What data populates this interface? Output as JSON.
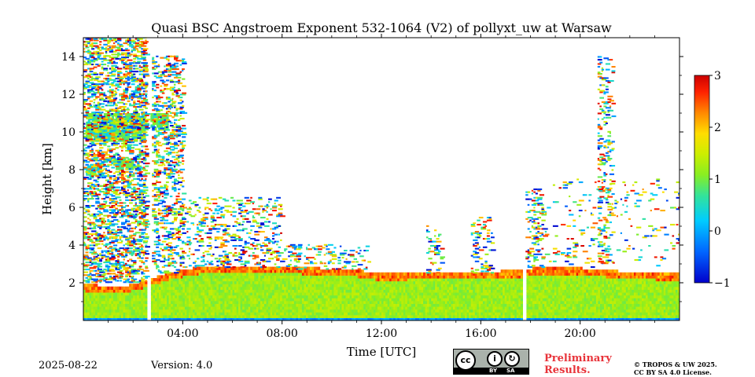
{
  "chart_data": {
    "type": "heatmap",
    "title": "Quasi BSC Angstroem Exponent 532-1064 (V2) of pollyxt_uw at Warsaw",
    "xlabel": "Time [UTC]",
    "ylabel": "Height [km]",
    "x_range_hours": [
      0,
      24
    ],
    "ylim": [
      0,
      15
    ],
    "x_ticks": [
      "04:00",
      "08:00",
      "12:00",
      "16:00",
      "20:00"
    ],
    "x_tick_hours": [
      4,
      8,
      12,
      16,
      20
    ],
    "y_ticks": [
      "2",
      "4",
      "6",
      "8",
      "10",
      "12",
      "14"
    ],
    "y_tick_values": [
      2,
      4,
      6,
      8,
      10,
      12,
      14
    ],
    "colorbar": {
      "min": -1,
      "max": 3,
      "ticks": [
        "−1",
        "0",
        "1",
        "2",
        "3"
      ],
      "tick_values": [
        -1,
        0,
        1,
        2,
        3
      ],
      "colormap": "jet"
    },
    "data_gaps_hours": [
      [
        2.55,
        2.7
      ],
      [
        17.65,
        17.8
      ]
    ],
    "boundary_layer_top_km": [
      [
        0,
        1.85
      ],
      [
        1.5,
        1.7
      ],
      [
        2.6,
        2.1
      ],
      [
        3.5,
        2.5
      ],
      [
        5,
        2.85
      ],
      [
        8,
        2.8
      ],
      [
        11,
        2.6
      ],
      [
        12,
        2.4
      ],
      [
        14,
        2.5
      ],
      [
        16,
        2.5
      ],
      [
        17.6,
        2.6
      ],
      [
        18,
        2.7
      ],
      [
        20,
        2.7
      ],
      [
        22,
        2.5
      ],
      [
        24,
        2.4
      ]
    ],
    "boundary_layer_value": 1.2,
    "elevated_layers": [
      {
        "t": [
          0.1,
          2.5
        ],
        "h": [
          9.5,
          11.0
        ],
        "value": 0.9
      },
      {
        "t": [
          2.7,
          3.4
        ],
        "h": [
          10.1,
          10.9
        ],
        "value": 0.9
      },
      {
        "t": [
          0.1,
          0.8
        ],
        "h": [
          7.7,
          8.3
        ],
        "value": 0.7
      },
      {
        "t": [
          1.3,
          2.0
        ],
        "h": [
          8.0,
          8.6
        ],
        "value": 0.9
      }
    ],
    "noise_regions": [
      {
        "t": [
          0.0,
          2.6
        ],
        "h": [
          2.0,
          15.0
        ],
        "density": 0.75
      },
      {
        "t": [
          2.6,
          4.0
        ],
        "h": [
          2.5,
          14.0
        ],
        "density": 0.55
      },
      {
        "t": [
          4.0,
          8.0
        ],
        "h": [
          2.8,
          6.5
        ],
        "density": 0.35
      },
      {
        "t": [
          8.0,
          11.5
        ],
        "h": [
          2.7,
          4.0
        ],
        "density": 0.3
      },
      {
        "t": [
          13.8,
          14.4
        ],
        "h": [
          2.5,
          5.0
        ],
        "density": 0.35
      },
      {
        "t": [
          15.6,
          16.4
        ],
        "h": [
          2.5,
          5.5
        ],
        "density": 0.35
      },
      {
        "t": [
          17.8,
          18.5
        ],
        "h": [
          2.8,
          7.0
        ],
        "density": 0.4
      },
      {
        "t": [
          20.7,
          21.3
        ],
        "h": [
          3.0,
          14.0
        ],
        "density": 0.35
      },
      {
        "t": [
          18.5,
          24.0
        ],
        "h": [
          2.8,
          7.5
        ],
        "density": 0.08
      }
    ]
  },
  "footer": {
    "date": "2025-08-22",
    "version": "Version: 4.0",
    "preliminary": "Preliminary Results.",
    "copyright_line1": "© TROPOS & UW 2025.",
    "copyright_line2": "CC BY SA 4.0 License.",
    "license_logo": {
      "main": "cc",
      "by": "BY",
      "sa": "SA"
    }
  }
}
